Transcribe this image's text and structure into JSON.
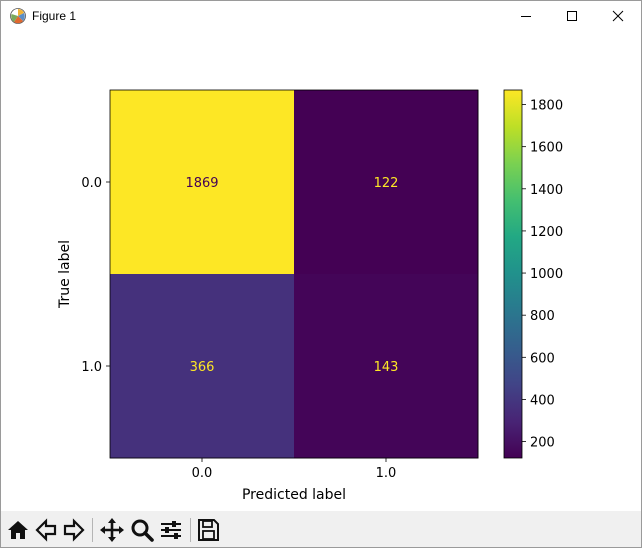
{
  "window": {
    "title": "Figure 1",
    "icons": [
      "matplotlib-logo-icon",
      "minimize-icon",
      "maximize-icon",
      "close-icon"
    ]
  },
  "chart_data": {
    "type": "heatmap",
    "title": "",
    "xlabel": "Predicted label",
    "ylabel": "True label",
    "x_categories": [
      "0.0",
      "1.0"
    ],
    "y_categories": [
      "0.0",
      "1.0"
    ],
    "values": [
      [
        1869,
        122
      ],
      [
        366,
        143
      ]
    ],
    "colormap": "viridis",
    "colorbar": {
      "range": [
        122,
        1869
      ],
      "ticks": [
        200,
        400,
        600,
        800,
        1000,
        1200,
        1400,
        1600,
        1800
      ]
    },
    "grid": false,
    "colors": {
      "high": "#fde725",
      "low": "#440154",
      "text_on_dark": "#fde725",
      "text_on_light": "#440154"
    }
  },
  "toolbar": {
    "buttons": [
      "home-icon",
      "back-icon",
      "forward-icon",
      "pan-icon",
      "zoom-icon",
      "configure-subplots-icon",
      "save-icon"
    ]
  }
}
